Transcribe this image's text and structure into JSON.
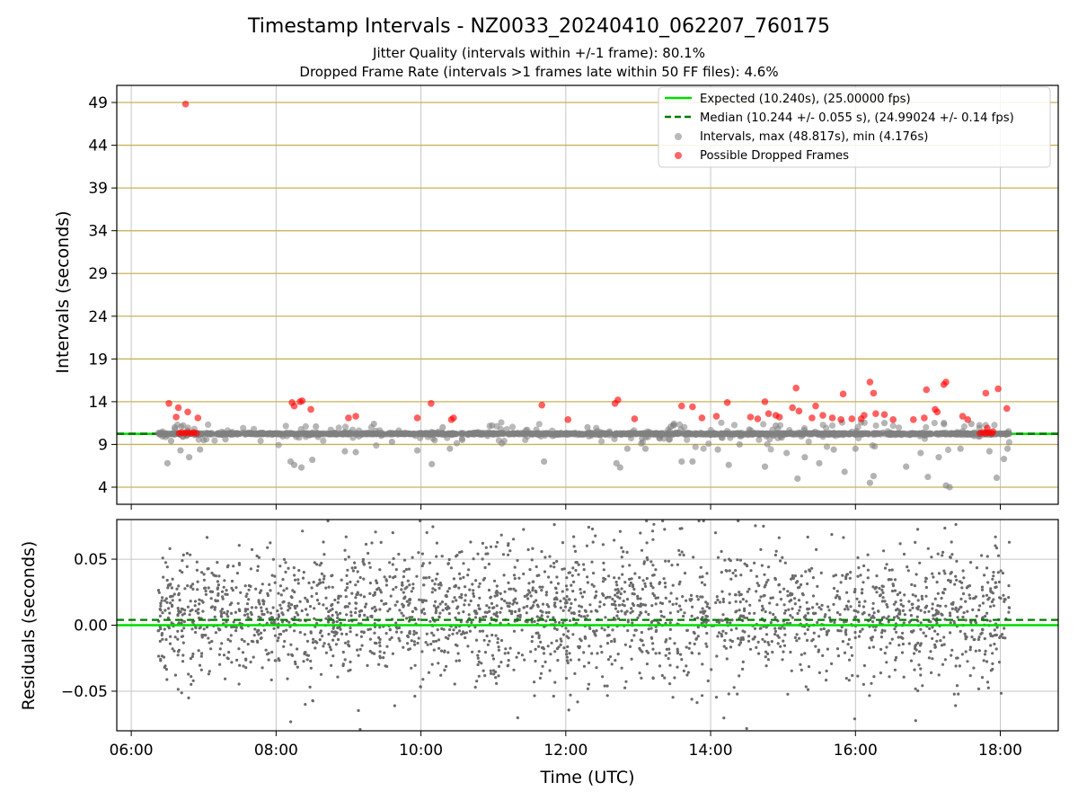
{
  "figure": {
    "title": "Timestamp Intervals - NZ0033_20240410_062207_760175",
    "subtitle_1": "Jitter Quality (intervals within +/-1 frame): 80.1%",
    "subtitle_2": "Dropped Frame Rate (intervals >1 frames late within 50 FF files): 4.6%"
  },
  "colors": {
    "expected_line": "#00dd00",
    "median_line": "#007a00",
    "intervals": "#808080",
    "dropped": "#ff0000",
    "hgrid": "#c8b25a",
    "vgrid": "#c6c6c6"
  },
  "chart_data": [
    {
      "type": "scatter",
      "panel": "top",
      "ylabel": "Intervals (seconds)",
      "ylim": [
        2,
        51
      ],
      "yticks": [
        4,
        9,
        14,
        19,
        24,
        29,
        34,
        39,
        44,
        49
      ],
      "xlim_hours": [
        5.8,
        18.8
      ],
      "xtick_hours": [
        6,
        8,
        10,
        12,
        14,
        16,
        18
      ],
      "hgrid": true,
      "vgrid": true,
      "legend_position": "top-right",
      "legend": [
        {
          "type": "solid-line",
          "label": "Expected (10.240s), (25.00000 fps)"
        },
        {
          "type": "dashed-line",
          "label": "Median (10.244 +/- 0.055 s), (24.99024 +/- 0.14 fps)"
        },
        {
          "type": "gray-marker",
          "label": "Intervals, max (48.817s), min (4.176s)"
        },
        {
          "type": "red-marker",
          "label": "Possible Dropped Frames"
        }
      ],
      "expected_interval": 10.24,
      "median_interval": 10.244,
      "data_span_hours": [
        6.37,
        18.13
      ],
      "dense_band": {
        "x_range_hours": [
          6.37,
          18.13
        ],
        "y": 10.24
      },
      "gray_outliers": [
        {
          "x": 6.5,
          "y": 6.8
        },
        {
          "x": 6.55,
          "y": 9.4
        },
        {
          "x": 6.6,
          "y": 11.0
        },
        {
          "x": 6.68,
          "y": 8.3
        },
        {
          "x": 6.8,
          "y": 7.5
        },
        {
          "x": 6.95,
          "y": 8.4
        },
        {
          "x": 7.0,
          "y": 9.5
        },
        {
          "x": 7.3,
          "y": 9.6
        },
        {
          "x": 8.2,
          "y": 7.0
        },
        {
          "x": 8.25,
          "y": 6.6
        },
        {
          "x": 8.35,
          "y": 6.3
        },
        {
          "x": 8.5,
          "y": 7.2
        },
        {
          "x": 8.55,
          "y": 11.1
        },
        {
          "x": 8.95,
          "y": 8.2
        },
        {
          "x": 9.1,
          "y": 8.1
        },
        {
          "x": 9.35,
          "y": 11.4
        },
        {
          "x": 9.6,
          "y": 9.3
        },
        {
          "x": 9.95,
          "y": 8.3
        },
        {
          "x": 10.15,
          "y": 6.7
        },
        {
          "x": 10.3,
          "y": 11.0
        },
        {
          "x": 10.4,
          "y": 8.5
        },
        {
          "x": 11.7,
          "y": 7.0
        },
        {
          "x": 12.3,
          "y": 11.0
        },
        {
          "x": 12.7,
          "y": 6.8
        },
        {
          "x": 12.75,
          "y": 6.3
        },
        {
          "x": 12.85,
          "y": 8.5
        },
        {
          "x": 13.1,
          "y": 8.5
        },
        {
          "x": 13.6,
          "y": 7.0
        },
        {
          "x": 13.75,
          "y": 7.0
        },
        {
          "x": 14.1,
          "y": 8.4
        },
        {
          "x": 14.25,
          "y": 6.6
        },
        {
          "x": 14.4,
          "y": 9.0
        },
        {
          "x": 14.75,
          "y": 6.4
        },
        {
          "x": 14.9,
          "y": 11.2
        },
        {
          "x": 15.05,
          "y": 8.0
        },
        {
          "x": 15.2,
          "y": 5.0
        },
        {
          "x": 15.3,
          "y": 7.5
        },
        {
          "x": 15.5,
          "y": 6.8
        },
        {
          "x": 15.7,
          "y": 8.4
        },
        {
          "x": 15.85,
          "y": 5.8
        },
        {
          "x": 16.0,
          "y": 8.5
        },
        {
          "x": 16.2,
          "y": 4.5
        },
        {
          "x": 16.25,
          "y": 5.3
        },
        {
          "x": 16.4,
          "y": 11.5
        },
        {
          "x": 16.7,
          "y": 6.4
        },
        {
          "x": 16.9,
          "y": 8.0
        },
        {
          "x": 17.0,
          "y": 5.2
        },
        {
          "x": 17.15,
          "y": 7.5
        },
        {
          "x": 17.25,
          "y": 4.2
        },
        {
          "x": 17.3,
          "y": 4.0
        },
        {
          "x": 17.45,
          "y": 8.5
        },
        {
          "x": 17.6,
          "y": 11.4
        },
        {
          "x": 17.85,
          "y": 8.2
        },
        {
          "x": 17.95,
          "y": 5.1
        },
        {
          "x": 18.05,
          "y": 7.3
        },
        {
          "x": 18.1,
          "y": 8.5
        }
      ],
      "dropped_frames": [
        {
          "x": 6.52,
          "y": 13.8
        },
        {
          "x": 6.62,
          "y": 12.2
        },
        {
          "x": 6.65,
          "y": 13.3
        },
        {
          "x": 6.75,
          "y": 48.817
        },
        {
          "x": 6.78,
          "y": 12.8
        },
        {
          "x": 6.92,
          "y": 12.1
        },
        {
          "x": 6.66,
          "y": 10.3
        },
        {
          "x": 6.7,
          "y": 10.4
        },
        {
          "x": 6.74,
          "y": 10.3
        },
        {
          "x": 6.78,
          "y": 10.4
        },
        {
          "x": 6.82,
          "y": 10.3
        },
        {
          "x": 6.86,
          "y": 10.4
        },
        {
          "x": 6.9,
          "y": 10.3
        },
        {
          "x": 8.22,
          "y": 13.9
        },
        {
          "x": 8.25,
          "y": 13.5
        },
        {
          "x": 8.33,
          "y": 14.0
        },
        {
          "x": 8.36,
          "y": 14.1
        },
        {
          "x": 8.48,
          "y": 13.1
        },
        {
          "x": 9.0,
          "y": 12.1
        },
        {
          "x": 9.1,
          "y": 12.3
        },
        {
          "x": 9.95,
          "y": 12.1
        },
        {
          "x": 10.14,
          "y": 13.8
        },
        {
          "x": 10.42,
          "y": 11.9
        },
        {
          "x": 10.45,
          "y": 12.1
        },
        {
          "x": 11.67,
          "y": 13.6
        },
        {
          "x": 12.03,
          "y": 11.9
        },
        {
          "x": 12.68,
          "y": 13.8
        },
        {
          "x": 12.72,
          "y": 14.2
        },
        {
          "x": 12.95,
          "y": 12.0
        },
        {
          "x": 13.6,
          "y": 13.5
        },
        {
          "x": 13.75,
          "y": 13.4
        },
        {
          "x": 13.88,
          "y": 12.1
        },
        {
          "x": 14.08,
          "y": 12.3
        },
        {
          "x": 14.23,
          "y": 13.9
        },
        {
          "x": 14.55,
          "y": 12.2
        },
        {
          "x": 14.65,
          "y": 12.0
        },
        {
          "x": 14.75,
          "y": 14.0
        },
        {
          "x": 14.8,
          "y": 12.6
        },
        {
          "x": 14.9,
          "y": 12.4
        },
        {
          "x": 14.95,
          "y": 12.2
        },
        {
          "x": 15.13,
          "y": 13.3
        },
        {
          "x": 15.18,
          "y": 15.6
        },
        {
          "x": 15.22,
          "y": 12.9
        },
        {
          "x": 15.4,
          "y": 12.1
        },
        {
          "x": 15.45,
          "y": 13.5
        },
        {
          "x": 15.55,
          "y": 12.4
        },
        {
          "x": 15.68,
          "y": 12.1
        },
        {
          "x": 15.8,
          "y": 11.9
        },
        {
          "x": 15.83,
          "y": 14.9
        },
        {
          "x": 15.95,
          "y": 12.0
        },
        {
          "x": 16.08,
          "y": 12.0
        },
        {
          "x": 16.12,
          "y": 12.4
        },
        {
          "x": 16.2,
          "y": 16.3
        },
        {
          "x": 16.25,
          "y": 15.0
        },
        {
          "x": 16.28,
          "y": 12.6
        },
        {
          "x": 16.4,
          "y": 12.5
        },
        {
          "x": 16.52,
          "y": 11.9
        },
        {
          "x": 16.8,
          "y": 11.9
        },
        {
          "x": 16.95,
          "y": 12.1
        },
        {
          "x": 16.98,
          "y": 15.4
        },
        {
          "x": 17.1,
          "y": 13.1
        },
        {
          "x": 17.13,
          "y": 12.8
        },
        {
          "x": 17.22,
          "y": 16.0
        },
        {
          "x": 17.25,
          "y": 16.3
        },
        {
          "x": 17.48,
          "y": 12.3
        },
        {
          "x": 17.55,
          "y": 11.9
        },
        {
          "x": 17.8,
          "y": 15.0
        },
        {
          "x": 17.72,
          "y": 10.3
        },
        {
          "x": 17.76,
          "y": 10.4
        },
        {
          "x": 17.8,
          "y": 10.3
        },
        {
          "x": 17.84,
          "y": 10.4
        },
        {
          "x": 17.88,
          "y": 10.3
        },
        {
          "x": 17.9,
          "y": 10.5
        },
        {
          "x": 17.82,
          "y": 10.9
        },
        {
          "x": 17.97,
          "y": 15.5
        },
        {
          "x": 18.09,
          "y": 13.2
        }
      ]
    },
    {
      "type": "scatter",
      "panel": "bottom",
      "xlabel": "Time (UTC)",
      "ylabel": "Residuals (seconds)",
      "ylim": [
        -0.08,
        0.08
      ],
      "yticks": [
        0.05,
        0.0,
        -0.05
      ],
      "ytick_labels": [
        "0.05",
        "0.00",
        "−0.05"
      ],
      "xlim_hours": [
        5.8,
        18.8
      ],
      "xtick_hours": [
        6,
        8,
        10,
        12,
        14,
        16,
        18
      ],
      "xtick_labels": [
        "06:00",
        "08:00",
        "10:00",
        "12:00",
        "14:00",
        "16:00",
        "18:00"
      ],
      "hgrid": true,
      "vgrid": true,
      "expected_residual": 0.0,
      "median_residual": 0.004,
      "residual_scatter": {
        "x_range_hours": [
          6.37,
          18.13
        ],
        "mean": 0.008,
        "std": 0.026
      }
    }
  ]
}
